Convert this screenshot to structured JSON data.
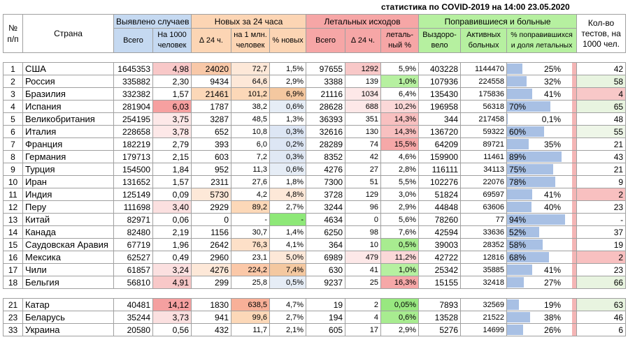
{
  "title": "статистика по COVID-2019 на 14:00 23.05.2020",
  "headers": {
    "num": "№ п/п",
    "country": "Страна",
    "cases_group": "Выявлено случаев",
    "new_group": "Новых за 24 часа",
    "deaths_group": "Летальных исходов",
    "recovered_group": "Поправившиеся и больные",
    "tests": "Кол-во тестов, на 1000 чел.",
    "cases_total": "Всего",
    "cases_per1000": "На 1000 человек",
    "new_24": "∆ 24 ч.",
    "new_per_mln": "на 1 млн. человек",
    "new_pct": "% новых",
    "deaths_total": "Всего",
    "deaths_24": "∆ 24 ч.",
    "deaths_pct": "леталь-ный %",
    "recovered": "Выздоро-вело",
    "active": "Активных больных",
    "recovered_pct": "% поправившихся и доля летальных"
  },
  "colors": {
    "blue_header": "#c5d9f1",
    "orange_header": "#fcd5b4",
    "red_header": "#f6a6a6",
    "green_header": "#b6f0a0",
    "bar": "#a8c0e4"
  },
  "rows": [
    {
      "n": "1",
      "country": "США",
      "total": "1645353",
      "per1000": "4,98",
      "new24": "24020",
      "permln": "72,7",
      "pct": "1,5%",
      "dtotal": "97655",
      "d24": "1292",
      "dpct": "5,9%",
      "rec": "403228",
      "active": "1144470",
      "recpct": "25%",
      "recfrac": 0.25,
      "tests": "42"
    },
    {
      "n": "2",
      "country": "Россия",
      "total": "335882",
      "per1000": "2,30",
      "new24": "9434",
      "permln": "64,6",
      "pct": "2,9%",
      "dtotal": "3388",
      "d24": "139",
      "dpct": "1,0%",
      "rec": "107936",
      "active": "224558",
      "recpct": "32%",
      "recfrac": 0.32,
      "tests": "58"
    },
    {
      "n": "3",
      "country": "Бразилия",
      "total": "332382",
      "per1000": "1,57",
      "new24": "21461",
      "permln": "101,2",
      "pct": "6,9%",
      "dtotal": "21116",
      "d24": "1034",
      "dpct": "6,4%",
      "rec": "135430",
      "active": "175836",
      "recpct": "41%",
      "recfrac": 0.41,
      "tests": "4"
    },
    {
      "n": "4",
      "country": "Испания",
      "total": "281904",
      "per1000": "6,03",
      "new24": "1787",
      "permln": "38,2",
      "pct": "0,6%",
      "dtotal": "28628",
      "d24": "688",
      "dpct": "10,2%",
      "rec": "196958",
      "active": "56318",
      "recpct": "70%",
      "recfrac": 0.7,
      "tests": "65"
    },
    {
      "n": "5",
      "country": "Великобритания",
      "total": "254195",
      "per1000": "3,75",
      "new24": "3287",
      "permln": "48,5",
      "pct": "1,3%",
      "dtotal": "36393",
      "d24": "351",
      "dpct": "14,3%",
      "rec": "344",
      "active": "217458",
      "recpct": "0,1%",
      "recfrac": 0.001,
      "tests": "48"
    },
    {
      "n": "6",
      "country": "Италия",
      "total": "228658",
      "per1000": "3,78",
      "new24": "652",
      "permln": "10,8",
      "pct": "0,3%",
      "dtotal": "32616",
      "d24": "130",
      "dpct": "14,3%",
      "rec": "136720",
      "active": "59322",
      "recpct": "60%",
      "recfrac": 0.6,
      "tests": "55"
    },
    {
      "n": "7",
      "country": "Франция",
      "total": "182219",
      "per1000": "2,79",
      "new24": "393",
      "permln": "6,0",
      "pct": "0,2%",
      "dtotal": "28289",
      "d24": "74",
      "dpct": "15,5%",
      "rec": "64209",
      "active": "89721",
      "recpct": "35%",
      "recfrac": 0.35,
      "tests": "21"
    },
    {
      "n": "8",
      "country": "Германия",
      "total": "179713",
      "per1000": "2,15",
      "new24": "603",
      "permln": "7,2",
      "pct": "0,3%",
      "dtotal": "8352",
      "d24": "42",
      "dpct": "4,6%",
      "rec": "159900",
      "active": "11461",
      "recpct": "89%",
      "recfrac": 0.89,
      "tests": "43"
    },
    {
      "n": "9",
      "country": "Турция",
      "total": "154500",
      "per1000": "1,84",
      "new24": "952",
      "permln": "11,3",
      "pct": "0,6%",
      "dtotal": "4276",
      "d24": "27",
      "dpct": "2,8%",
      "rec": "116111",
      "active": "34113",
      "recpct": "75%",
      "recfrac": 0.75,
      "tests": "21"
    },
    {
      "n": "10",
      "country": "Иран",
      "total": "131652",
      "per1000": "1,57",
      "new24": "2311",
      "permln": "27,6",
      "pct": "1,8%",
      "dtotal": "7300",
      "d24": "51",
      "dpct": "5,5%",
      "rec": "102276",
      "active": "22076",
      "recpct": "78%",
      "recfrac": 0.78,
      "tests": "9"
    },
    {
      "n": "11",
      "country": "Индия",
      "total": "125149",
      "per1000": "0,09",
      "new24": "5730",
      "permln": "4,2",
      "pct": "4,8%",
      "dtotal": "3728",
      "d24": "129",
      "dpct": "3,0%",
      "rec": "51824",
      "active": "69597",
      "recpct": "41%",
      "recfrac": 0.41,
      "tests": "2"
    },
    {
      "n": "12",
      "country": "Перу",
      "total": "111698",
      "per1000": "3,40",
      "new24": "2929",
      "permln": "89,2",
      "pct": "2,7%",
      "dtotal": "3244",
      "d24": "96",
      "dpct": "2,9%",
      "rec": "44848",
      "active": "63606",
      "recpct": "40%",
      "recfrac": 0.4,
      "tests": "23"
    },
    {
      "n": "13",
      "country": "Китай",
      "total": "82971",
      "per1000": "0,06",
      "new24": "0",
      "permln": "-",
      "pct": "-",
      "dtotal": "4634",
      "d24": "0",
      "dpct": "5,6%",
      "rec": "78260",
      "active": "77",
      "recpct": "94%",
      "recfrac": 0.94,
      "tests": "-"
    },
    {
      "n": "14",
      "country": "Канада",
      "total": "82480",
      "per1000": "2,19",
      "new24": "1156",
      "permln": "30,7",
      "pct": "1,4%",
      "dtotal": "6250",
      "d24": "98",
      "dpct": "7,6%",
      "rec": "42594",
      "active": "33636",
      "recpct": "52%",
      "recfrac": 0.52,
      "tests": "37"
    },
    {
      "n": "15",
      "country": "Саудовская Аравия",
      "total": "67719",
      "per1000": "1,96",
      "new24": "2642",
      "permln": "76,3",
      "pct": "4,1%",
      "dtotal": "364",
      "d24": "10",
      "dpct": "0,5%",
      "rec": "39003",
      "active": "28352",
      "recpct": "58%",
      "recfrac": 0.58,
      "tests": "19"
    },
    {
      "n": "16",
      "country": "Мексика",
      "total": "62527",
      "per1000": "0,49",
      "new24": "2960",
      "permln": "23,1",
      "pct": "5,0%",
      "dtotal": "6989",
      "d24": "479",
      "dpct": "11,2%",
      "rec": "42722",
      "active": "12816",
      "recpct": "68%",
      "recfrac": 0.68,
      "tests": "2"
    },
    {
      "n": "17",
      "country": "Чили",
      "total": "61857",
      "per1000": "3,24",
      "new24": "4276",
      "permln": "224,2",
      "pct": "7,4%",
      "dtotal": "630",
      "d24": "41",
      "dpct": "1,0%",
      "rec": "25342",
      "active": "35885",
      "recpct": "41%",
      "recfrac": 0.41,
      "tests": "23"
    },
    {
      "n": "18",
      "country": "Бельгия",
      "total": "56810",
      "per1000": "4,91",
      "new24": "299",
      "permln": "25,8",
      "pct": "0,5%",
      "dtotal": "9237",
      "d24": "25",
      "dpct": "16,3%",
      "rec": "15155",
      "active": "32418",
      "recpct": "27%",
      "recfrac": 0.27,
      "tests": "66"
    }
  ],
  "rows2": [
    {
      "n": "21",
      "country": "Катар",
      "total": "40481",
      "per1000": "14,12",
      "new24": "1830",
      "permln": "638,5",
      "pct": "4,7%",
      "dtotal": "19",
      "d24": "2",
      "dpct": "0,05%",
      "rec": "7893",
      "active": "32569",
      "recpct": "19%",
      "recfrac": 0.19,
      "tests": "63"
    },
    {
      "n": "23",
      "country": "Беларусь",
      "total": "35244",
      "per1000": "3,73",
      "new24": "941",
      "permln": "99,6",
      "pct": "2,7%",
      "dtotal": "194",
      "d24": "4",
      "dpct": "0,6%",
      "rec": "13528",
      "active": "21522",
      "recpct": "38%",
      "recfrac": 0.38,
      "tests": "46"
    },
    {
      "n": "33",
      "country": "Украина",
      "total": "20580",
      "per1000": "0,56",
      "new24": "432",
      "permln": "11,7",
      "pct": "2,1%",
      "dtotal": "605",
      "d24": "17",
      "dpct": "2,9%",
      "rec": "5276",
      "active": "14699",
      "recpct": "26%",
      "recfrac": 0.26,
      "tests": "6"
    }
  ]
}
